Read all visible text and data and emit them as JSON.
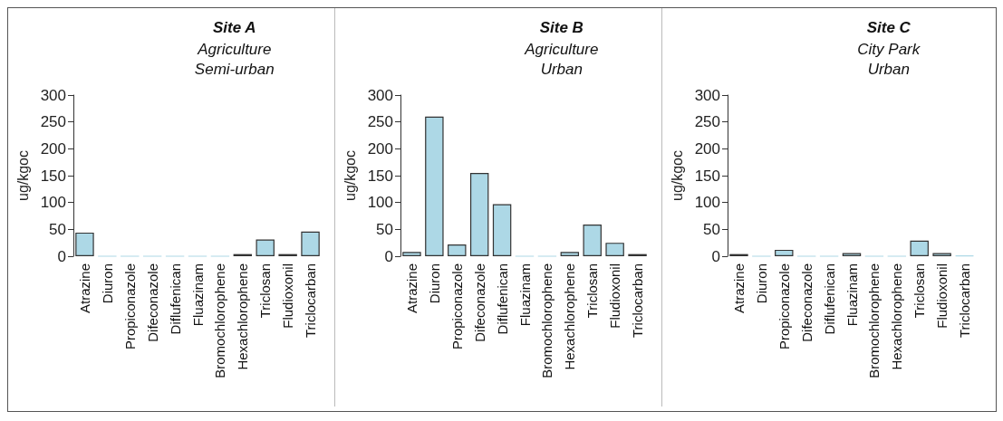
{
  "chart_data": [
    {
      "type": "bar",
      "title": "Site A",
      "subtitle": "Agriculture\nSemi-urban",
      "ylabel": "ug/kgoc",
      "categories": [
        "Atrazine",
        "Diuron",
        "Propiconazole",
        "Difeconazole",
        "Diflufenican",
        "Fluazinam",
        "Bromochlorophene",
        "Hexachlorophene",
        "Triclosan",
        "Fludioxonil",
        "Triclocarban"
      ],
      "values": [
        44,
        0,
        0,
        0,
        0,
        0,
        0,
        4,
        31,
        4,
        46
      ],
      "color": "#add8e6",
      "ylim": [
        0,
        300
      ],
      "yticks": [
        0,
        50,
        100,
        150,
        200,
        250,
        300
      ],
      "grid": false
    },
    {
      "type": "bar",
      "title": "Site B",
      "subtitle": "Agriculture\nUrban",
      "ylabel": "ug/kgoc",
      "categories": [
        "Atrazine",
        "Diuron",
        "Propiconazole",
        "Difeconazole",
        "Diflufenican",
        "Fluazinam",
        "Bromochlorophene",
        "Hexachlorophene",
        "Triclosan",
        "Fludioxonil",
        "Triclocarban"
      ],
      "values": [
        8,
        260,
        22,
        155,
        97,
        0,
        0,
        8,
        59,
        25,
        4
      ],
      "color": "#add8e6",
      "ylim": [
        0,
        300
      ],
      "yticks": [
        0,
        50,
        100,
        150,
        200,
        250,
        300
      ],
      "grid": false
    },
    {
      "type": "bar",
      "title": "Site C",
      "subtitle": "City Park\nUrban",
      "ylabel": "ug/kgoc",
      "categories": [
        "Atrazine",
        "Diuron",
        "Propiconazole",
        "Difeconazole",
        "Diflufenican",
        "Fluazinam",
        "Bromochlorophene",
        "Hexachlorophene",
        "Triclosan",
        "Fludioxonil",
        "Triclocarban"
      ],
      "values": [
        4,
        0,
        12,
        0,
        0,
        6,
        0,
        0,
        29,
        6,
        1
      ],
      "color": "#add8e6",
      "ylim": [
        0,
        300
      ],
      "yticks": [
        0,
        50,
        100,
        150,
        200,
        250,
        300
      ],
      "grid": false
    }
  ]
}
